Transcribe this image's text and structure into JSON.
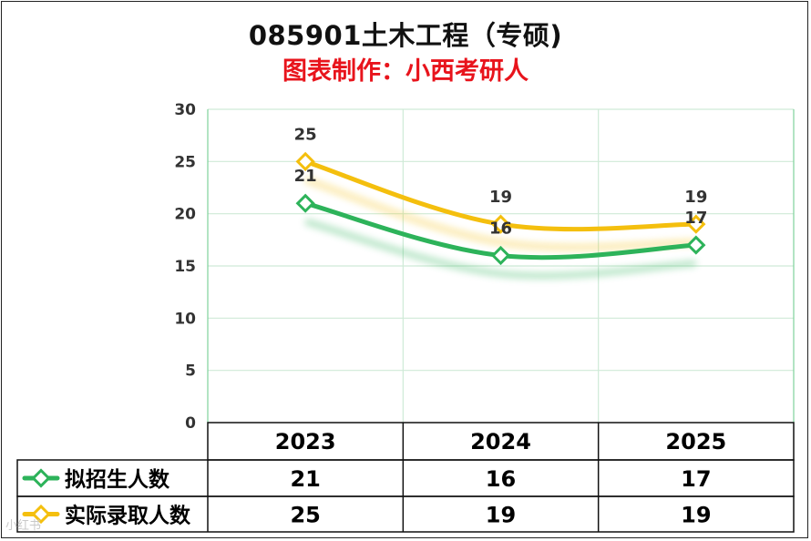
{
  "title": "085901土木工程（专硕)",
  "subtitle": "图表制作：小西考研人",
  "colors": {
    "subtitle": "#e8141c",
    "series1": "#2db35a",
    "series2": "#f4bf0e",
    "grid": "#cfead7",
    "axis": "#7ed39b"
  },
  "watermark": "小红书",
  "chart_data": {
    "type": "line",
    "categories": [
      "2023",
      "2024",
      "2025"
    ],
    "series": [
      {
        "name": "拟招生人数",
        "values": [
          21,
          16,
          17
        ],
        "color": "#2db35a"
      },
      {
        "name": "实际录取人数",
        "values": [
          25,
          19,
          19
        ],
        "color": "#f4bf0e"
      }
    ],
    "ylim": [
      0,
      30
    ],
    "yticks": [
      0,
      5,
      10,
      15,
      20,
      25,
      30
    ],
    "grid": true,
    "legend": "data-table"
  }
}
